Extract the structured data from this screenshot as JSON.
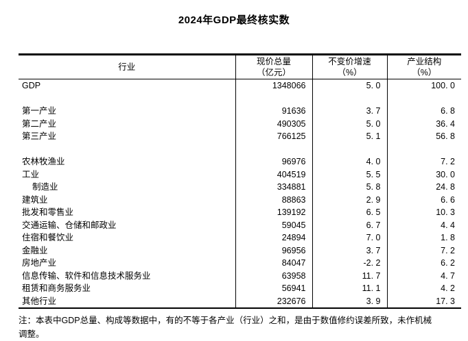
{
  "page": {
    "title": "2024年GDP最终核实数"
  },
  "table": {
    "columns": [
      {
        "title": "行业",
        "subtitle": ""
      },
      {
        "title": "现价总量",
        "subtitle": "（亿元）"
      },
      {
        "title": "不变价增速",
        "subtitle": "（%）"
      },
      {
        "title": "产业结构",
        "subtitle": "（%）"
      }
    ],
    "rows": [
      {
        "industry": "GDP",
        "total": "1348066",
        "growth": "5. 0",
        "share": "100. 0"
      },
      {
        "industry": "第一产业",
        "total": "91636",
        "growth": "3. 7",
        "share": "6. 8"
      },
      {
        "industry": "第二产业",
        "total": "490305",
        "growth": "5. 0",
        "share": "36. 4"
      },
      {
        "industry": "第三产业",
        "total": "766125",
        "growth": "5. 1",
        "share": "56. 8"
      },
      {
        "industry": "农林牧渔业",
        "total": "96976",
        "growth": "4. 0",
        "share": "7. 2"
      },
      {
        "industry": "工业",
        "total": "404519",
        "growth": "5. 5",
        "share": "30. 0"
      },
      {
        "industry": "制造业",
        "total": "334881",
        "growth": "5. 8",
        "share": "24. 8"
      },
      {
        "industry": "建筑业",
        "total": "88863",
        "growth": "2. 9",
        "share": "6. 6"
      },
      {
        "industry": "批发和零售业",
        "total": "139192",
        "growth": "6. 5",
        "share": "10. 3"
      },
      {
        "industry": "交通运输、仓储和邮政业",
        "total": "59045",
        "growth": "6. 7",
        "share": "4. 4"
      },
      {
        "industry": "住宿和餐饮业",
        "total": "24894",
        "growth": "7. 0",
        "share": "1. 8"
      },
      {
        "industry": "金融业",
        "total": "96956",
        "growth": "3. 7",
        "share": "7. 2"
      },
      {
        "industry": "房地产业",
        "total": "84047",
        "growth": "-2. 2",
        "share": "6. 2"
      },
      {
        "industry": "信息传输、软件和信息技术服务业",
        "total": "63958",
        "growth": "11. 7",
        "share": "4. 7"
      },
      {
        "industry": "租赁和商务服务业",
        "total": "56941",
        "growth": "11. 1",
        "share": "4. 2"
      },
      {
        "industry": "其他行业",
        "total": "232676",
        "growth": "3. 9",
        "share": "17. 3"
      }
    ]
  },
  "note": "注：本表中GDP总量、构成等数据中，有的不等于各产业（行业）之和，是由于数值修约误差所致，未作机械调整。"
}
